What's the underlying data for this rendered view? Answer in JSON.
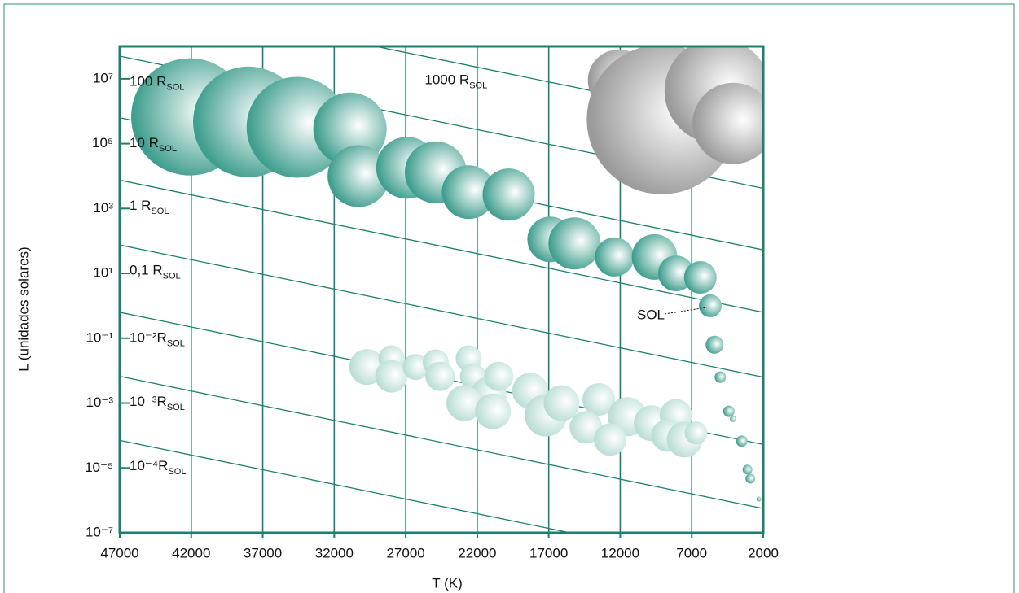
{
  "chart_data": {
    "type": "bubble",
    "xlabel": "T (K)",
    "ylabel": "L (unidades solares)",
    "xlim": [
      47000,
      2000
    ],
    "ylim": [
      1e-07,
      100000000.0
    ],
    "log_y": true,
    "grid": true,
    "xticks": [
      47000,
      42000,
      37000,
      32000,
      27000,
      22000,
      17000,
      12000,
      7000,
      2000
    ],
    "yticks": [
      {
        "value": 10000000.0,
        "label": "10⁷"
      },
      {
        "value": 100000.0,
        "label": "10⁵"
      },
      {
        "value": 1000.0,
        "label": "10³"
      },
      {
        "value": 10,
        "label": "10¹"
      },
      {
        "value": 0.1,
        "label": "10⁻¹"
      },
      {
        "value": 0.001,
        "label": "10⁻³"
      },
      {
        "value": 1e-05,
        "label": "10⁻⁵"
      },
      {
        "value": 1e-07,
        "label": "10⁻⁷"
      }
    ],
    "radius_lines": [
      {
        "label": "1000 R",
        "label_sub": "SOL",
        "x": [
          47000,
          2000
        ],
        "y": [
          4200000000.0,
          350000.0
        ]
      },
      {
        "label": "100 R",
        "label_sub": "SOL",
        "x": [
          47000,
          2000
        ],
        "y": [
          50000000.0,
          4200.0
        ]
      },
      {
        "label": "10 R",
        "label_sub": "SOL",
        "x": [
          47000,
          2000
        ],
        "y": [
          630000.0,
          53
        ]
      },
      {
        "label": "1 R",
        "label_sub": "SOL",
        "x": [
          47000,
          2000
        ],
        "y": [
          7500.0,
          0.63
        ]
      },
      {
        "label": "0,1 R",
        "label_sub": "SOL",
        "x": [
          47000,
          2000
        ],
        "y": [
          75,
          0.0063
        ]
      },
      {
        "label": "10⁻²R",
        "label_sub": "SOL",
        "x": [
          47000,
          2000
        ],
        "y": [
          0.63,
          5.3e-05
        ]
      },
      {
        "label": "10⁻³R",
        "label_sub": "SOL",
        "x": [
          47000,
          2000
        ],
        "y": [
          0.0067,
          5.6e-07
        ]
      },
      {
        "label": "10⁻⁴R",
        "label_sub": "SOL",
        "x": [
          47000,
          2000
        ],
        "y": [
          7.1e-05,
          6e-09
        ]
      }
    ],
    "series": [
      {
        "color": "#3f9e8e",
        "x": [
          42100,
          38000,
          34600,
          30900,
          30300,
          26900,
          24900,
          22600,
          19800,
          16900,
          15200,
          12400,
          9600,
          8100,
          6400
        ],
        "y": [
          670000.0,
          470000.0,
          320000.0,
          280000.0,
          10000.0,
          18000.0,
          13000.0,
          3200.0,
          2700.0,
          112,
          84,
          32,
          32,
          10,
          7.5
        ],
        "sizes": [
          72,
          68,
          62,
          45,
          38,
          38,
          38,
          33,
          32,
          28,
          32,
          24,
          28,
          22,
          20
        ]
      },
      {
        "color": "#3f9e8e",
        "label": "SOL",
        "x": [
          5700
        ],
        "y": [
          1
        ],
        "sizes": [
          14
        ]
      },
      {
        "color": "#3f9e8e",
        "x": [
          5400,
          5000,
          4400,
          4100,
          3500,
          3100,
          2900,
          2300
        ],
        "y": [
          0.063,
          0.0063,
          0.00056,
          0.00033,
          6.7e-05,
          8.9e-06,
          4.7e-06,
          1.1e-06
        ],
        "sizes": [
          11,
          7,
          7,
          4,
          7,
          6,
          6,
          3
        ]
      },
      {
        "color": "#b9ddd6",
        "x": [
          29700,
          28000,
          28000,
          26300,
          24900,
          24600,
          22600,
          22300,
          21200,
          20500,
          22900,
          20900,
          18300,
          17200,
          16100,
          13500,
          11500,
          9800,
          8100,
          14400,
          12700,
          8700,
          7500,
          6700
        ],
        "y": [
          0.013,
          0.024,
          0.0067,
          0.013,
          0.018,
          0.0067,
          0.024,
          0.0067,
          0.0018,
          0.0067,
          0.001,
          0.00056,
          0.0024,
          0.00042,
          0.001,
          0.0013,
          0.00038,
          0.00024,
          0.00042,
          0.00018,
          7.5e-05,
          0.0001,
          7.5e-05,
          0.00012
        ],
        "sizes": [
          22,
          16,
          20,
          16,
          16,
          18,
          16,
          16,
          22,
          18,
          22,
          22,
          22,
          26,
          22,
          20,
          24,
          22,
          20,
          20,
          20,
          20,
          22,
          14
        ]
      },
      {
        "color": "#9a9a9a",
        "x": [
          12100,
          9100,
          5200,
          4100
        ],
        "y": [
          8900000.0,
          560000.0,
          4200000.0,
          420000.0
        ],
        "sizes": [
          38,
          92,
          65,
          50
        ]
      }
    ]
  }
}
